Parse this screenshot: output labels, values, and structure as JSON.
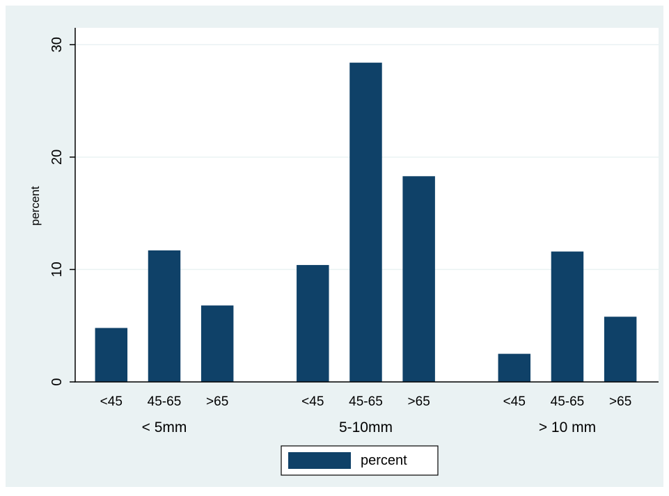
{
  "chart_data": {
    "type": "bar",
    "ylabel": "percent",
    "ylim": [
      0,
      31.5
    ],
    "yticks": [
      0,
      10,
      20,
      30
    ],
    "groups": [
      {
        "label": "< 5mm",
        "categories": [
          "<45",
          "45-65",
          ">65"
        ],
        "values": [
          4.8,
          11.7,
          6.8
        ]
      },
      {
        "label": "5-10mm",
        "categories": [
          "<45",
          "45-65",
          ">65"
        ],
        "values": [
          10.4,
          28.4,
          18.3
        ]
      },
      {
        "label": "> 10 mm",
        "categories": [
          "<45",
          "45-65",
          ">65"
        ],
        "values": [
          2.5,
          11.6,
          5.8
        ]
      }
    ],
    "series": [
      {
        "name": "percent",
        "color": "#0f4168"
      }
    ],
    "grid": true,
    "legend_position": "bottom-center",
    "colors": {
      "background": "#eaf2f3",
      "plot_area": "#ffffff",
      "bar": "#0f4168",
      "gridline": "#eaf2f3",
      "axis": "#000000"
    }
  }
}
